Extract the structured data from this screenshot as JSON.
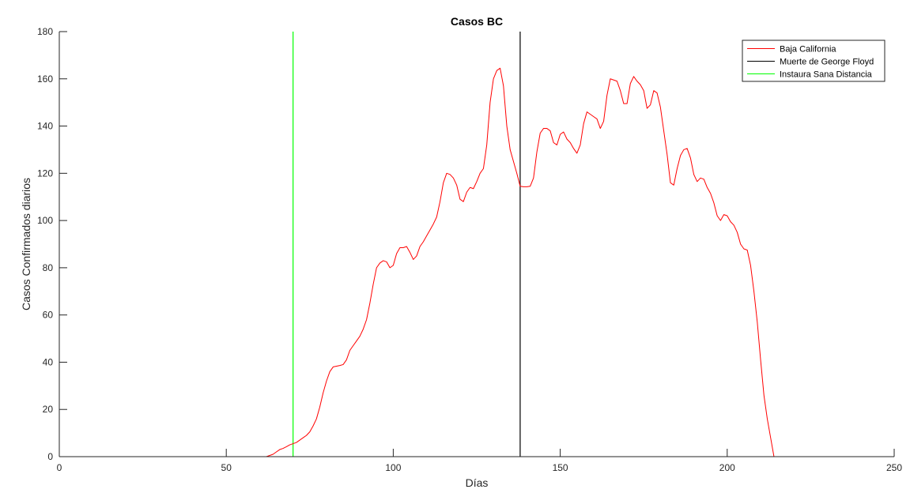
{
  "chart_data": {
    "type": "line",
    "title": "Casos BC",
    "xlabel": "Días",
    "ylabel": "Casos Confirmados diarios",
    "xlim": [
      0,
      250
    ],
    "ylim": [
      0,
      180
    ],
    "xticks": [
      0,
      50,
      100,
      150,
      200,
      250
    ],
    "yticks": [
      0,
      20,
      40,
      60,
      80,
      100,
      120,
      140,
      160,
      180
    ],
    "grid": false,
    "legend_position": "top-right",
    "series": [
      {
        "name": "Baja California",
        "color": "#ff0000",
        "points": [
          [
            0,
            0
          ],
          [
            62,
            0
          ],
          [
            63,
            0.5
          ],
          [
            64,
            1
          ],
          [
            65,
            2
          ],
          [
            66,
            3
          ],
          [
            67,
            3.5
          ],
          [
            68,
            4.2
          ],
          [
            69,
            5
          ],
          [
            70,
            5.5
          ],
          [
            71,
            6
          ],
          [
            72,
            7
          ],
          [
            73,
            8
          ],
          [
            74,
            9
          ],
          [
            75,
            10.5
          ],
          [
            76,
            13
          ],
          [
            77,
            16
          ],
          [
            78,
            21
          ],
          [
            79,
            27
          ],
          [
            80,
            32
          ],
          [
            81,
            36
          ],
          [
            82,
            38
          ],
          [
            83,
            38.3
          ],
          [
            84,
            38.6
          ],
          [
            85,
            39
          ],
          [
            86,
            41
          ],
          [
            87,
            45
          ],
          [
            88,
            47
          ],
          [
            89,
            49
          ],
          [
            90,
            51
          ],
          [
            91,
            54
          ],
          [
            92,
            58
          ],
          [
            93,
            65
          ],
          [
            94,
            73
          ],
          [
            95,
            80
          ],
          [
            96,
            82
          ],
          [
            97,
            83
          ],
          [
            98,
            82.5
          ],
          [
            99,
            80
          ],
          [
            100,
            81
          ],
          [
            101,
            86
          ],
          [
            102,
            88.5
          ],
          [
            103,
            88.5
          ],
          [
            104,
            89
          ],
          [
            105,
            86.5
          ],
          [
            106,
            83.5
          ],
          [
            107,
            85
          ],
          [
            108,
            89
          ],
          [
            109,
            91
          ],
          [
            110,
            93.5
          ],
          [
            111,
            96
          ],
          [
            112,
            98.5
          ],
          [
            113,
            101.5
          ],
          [
            114,
            108
          ],
          [
            115,
            116
          ],
          [
            116,
            120
          ],
          [
            117,
            119.5
          ],
          [
            118,
            118
          ],
          [
            119,
            115
          ],
          [
            120,
            109
          ],
          [
            121,
            108
          ],
          [
            122,
            112
          ],
          [
            123,
            114
          ],
          [
            124,
            113.5
          ],
          [
            125,
            116.5
          ],
          [
            126,
            120
          ],
          [
            127,
            122
          ],
          [
            128,
            132
          ],
          [
            129,
            150
          ],
          [
            130,
            160
          ],
          [
            131,
            163.5
          ],
          [
            132,
            164.5
          ],
          [
            133,
            157
          ],
          [
            134,
            140
          ],
          [
            135,
            130
          ],
          [
            136,
            125
          ],
          [
            137,
            120
          ],
          [
            138,
            114.5
          ],
          [
            139,
            114.3
          ],
          [
            140,
            114.3
          ],
          [
            141,
            114.5
          ],
          [
            142,
            118
          ],
          [
            143,
            129
          ],
          [
            144,
            137
          ],
          [
            145,
            139
          ],
          [
            146,
            139
          ],
          [
            147,
            138
          ],
          [
            148,
            133
          ],
          [
            149,
            132
          ],
          [
            150,
            136.5
          ],
          [
            151,
            137.5
          ],
          [
            152,
            134.5
          ],
          [
            153,
            133
          ],
          [
            154,
            130.5
          ],
          [
            155,
            128.5
          ],
          [
            156,
            132
          ],
          [
            157,
            141
          ],
          [
            158,
            146
          ],
          [
            159,
            145
          ],
          [
            160,
            144
          ],
          [
            161,
            143
          ],
          [
            162,
            139
          ],
          [
            163,
            142
          ],
          [
            164,
            153
          ],
          [
            165,
            160
          ],
          [
            166,
            159.5
          ],
          [
            167,
            159
          ],
          [
            168,
            155
          ],
          [
            169,
            149.5
          ],
          [
            170,
            149.5
          ],
          [
            171,
            158
          ],
          [
            172,
            161
          ],
          [
            173,
            159
          ],
          [
            174,
            157.5
          ],
          [
            175,
            155
          ],
          [
            176,
            147.5
          ],
          [
            177,
            149
          ],
          [
            178,
            155
          ],
          [
            179,
            154
          ],
          [
            180,
            148
          ],
          [
            181,
            138
          ],
          [
            182,
            128
          ],
          [
            183,
            116
          ],
          [
            184,
            115
          ],
          [
            185,
            122
          ],
          [
            186,
            127.5
          ],
          [
            187,
            130
          ],
          [
            188,
            130.5
          ],
          [
            189,
            126.5
          ],
          [
            190,
            119.5
          ],
          [
            191,
            116.5
          ],
          [
            192,
            118
          ],
          [
            193,
            117.5
          ],
          [
            194,
            114
          ],
          [
            195,
            111.5
          ],
          [
            196,
            107.5
          ],
          [
            197,
            102
          ],
          [
            198,
            100
          ],
          [
            199,
            102.5
          ],
          [
            200,
            102
          ],
          [
            201,
            99.5
          ],
          [
            202,
            98
          ],
          [
            203,
            95
          ],
          [
            204,
            90
          ],
          [
            205,
            88
          ],
          [
            206,
            87.5
          ],
          [
            207,
            81
          ],
          [
            208,
            70
          ],
          [
            209,
            57
          ],
          [
            210,
            41
          ],
          [
            211,
            26
          ],
          [
            212,
            16
          ],
          [
            213,
            8
          ],
          [
            214,
            0
          ]
        ]
      }
    ],
    "vertical_lines": [
      {
        "name": "Muerte de George Floyd",
        "x": 138,
        "color": "#000000"
      },
      {
        "name": "Instaura Sana Distancia",
        "x": 70,
        "color": "#00ff00"
      }
    ]
  }
}
